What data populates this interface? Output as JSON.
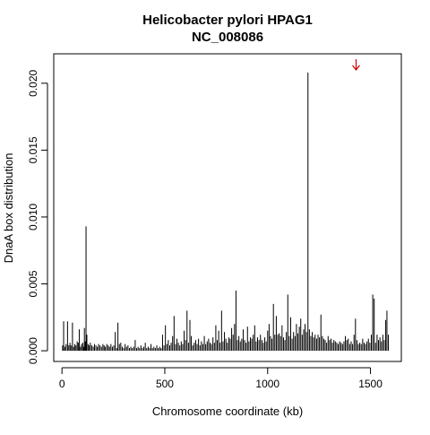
{
  "chart_data": {
    "type": "bar",
    "title": "Helicobacter pylori HPAG1",
    "subtitle": "NC_008086",
    "xlabel": "Chromosome coordinate (kb)",
    "ylabel": "DnaA box distribution",
    "xlim": [
      -40,
      1650
    ],
    "ylim": [
      -0.0008,
      0.0222
    ],
    "xticks": [
      {
        "value": 0,
        "label": "0"
      },
      {
        "value": 500,
        "label": "500"
      },
      {
        "value": 1000,
        "label": "1000"
      },
      {
        "value": 1500,
        "label": "1500"
      }
    ],
    "yticks": [
      {
        "value": 0.0,
        "label": "0.000"
      },
      {
        "value": 0.005,
        "label": "0.005"
      },
      {
        "value": 0.01,
        "label": "0.010"
      },
      {
        "value": 0.015,
        "label": "0.015"
      },
      {
        "value": 0.02,
        "label": "0.020"
      }
    ],
    "grid": false,
    "bar_color": "#000000",
    "x": [
      3,
      8,
      14,
      20,
      27,
      33,
      39,
      44,
      51,
      56,
      62,
      68,
      74,
      79,
      84,
      90,
      95,
      101,
      106,
      109,
      113,
      117,
      121,
      127,
      133,
      138,
      145,
      152,
      158,
      165,
      172,
      178,
      185,
      192,
      199,
      205,
      211,
      218,
      225,
      231,
      238,
      245,
      252,
      259,
      266,
      272,
      279,
      286,
      293,
      300,
      307,
      314,
      321,
      328,
      335,
      342,
      349,
      356,
      363,
      370,
      377,
      384,
      391,
      398,
      405,
      412,
      419,
      426,
      433,
      440,
      447,
      454,
      461,
      468,
      475,
      482,
      489,
      496,
      503,
      510,
      517,
      524,
      531,
      538,
      545,
      552,
      559,
      566,
      573,
      580,
      587,
      594,
      601,
      608,
      615,
      622,
      629,
      636,
      643,
      650,
      657,
      664,
      671,
      678,
      685,
      692,
      699,
      706,
      713,
      720,
      727,
      734,
      741,
      748,
      755,
      762,
      769,
      776,
      783,
      790,
      797,
      804,
      811,
      818,
      825,
      832,
      839,
      846,
      853,
      860,
      867,
      874,
      881,
      888,
      895,
      902,
      909,
      916,
      923,
      930,
      937,
      944,
      951,
      958,
      965,
      972,
      979,
      986,
      993,
      1000,
      1007,
      1014,
      1021,
      1028,
      1035,
      1042,
      1049,
      1056,
      1063,
      1070,
      1077,
      1084,
      1091,
      1098,
      1105,
      1112,
      1119,
      1126,
      1133,
      1140,
      1147,
      1154,
      1161,
      1168,
      1175,
      1182,
      1189,
      1196,
      1203,
      1210,
      1217,
      1224,
      1231,
      1238,
      1245,
      1252,
      1259,
      1266,
      1273,
      1280,
      1287,
      1294,
      1301,
      1308,
      1315,
      1322,
      1329,
      1336,
      1343,
      1350,
      1357,
      1364,
      1371,
      1378,
      1385,
      1392,
      1399,
      1406,
      1413,
      1420,
      1427,
      1434,
      1441,
      1448,
      1455,
      1462,
      1469,
      1476,
      1483,
      1490,
      1497,
      1504,
      1511,
      1518,
      1525,
      1532,
      1539,
      1546,
      1553,
      1560,
      1567,
      1574,
      1580,
      1587
    ],
    "values": [
      0.0004,
      0.0022,
      0.0003,
      0.0005,
      0.0022,
      0.0004,
      0.0006,
      0.0004,
      0.0021,
      0.0003,
      0.0005,
      0.0004,
      0.0007,
      0.0006,
      0.0016,
      0.0003,
      0.0005,
      0.0006,
      0.0003,
      0.0017,
      0.0007,
      0.0093,
      0.0012,
      0.0005,
      0.0004,
      0.0006,
      0.0004,
      0.0003,
      0.0005,
      0.0004,
      0.0003,
      0.0005,
      0.0004,
      0.0003,
      0.0005,
      0.0004,
      0.0003,
      0.0005,
      0.0004,
      0.0003,
      0.0005,
      0.0003,
      0.0004,
      0.0014,
      0.0002,
      0.0021,
      0.0005,
      0.0006,
      0.0003,
      0.0002,
      0.0005,
      0.0003,
      0.0004,
      0.0002,
      0.0003,
      0.0002,
      0.0003,
      0.0008,
      0.0002,
      0.0003,
      0.0002,
      0.0004,
      0.0002,
      0.0003,
      0.0006,
      0.0002,
      0.0003,
      0.0002,
      0.0005,
      0.0002,
      0.0003,
      0.0002,
      0.0004,
      0.0002,
      0.0003,
      0.0002,
      0.0012,
      0.0004,
      0.0019,
      0.0005,
      0.0008,
      0.0004,
      0.0006,
      0.0011,
      0.0026,
      0.0005,
      0.0009,
      0.0006,
      0.0004,
      0.0007,
      0.0005,
      0.0015,
      0.0008,
      0.003,
      0.0006,
      0.0023,
      0.0011,
      0.0004,
      0.0006,
      0.0008,
      0.0005,
      0.0009,
      0.0004,
      0.0007,
      0.0005,
      0.0011,
      0.0005,
      0.0007,
      0.0009,
      0.0006,
      0.0005,
      0.001,
      0.0006,
      0.0019,
      0.0008,
      0.0015,
      0.0006,
      0.003,
      0.0007,
      0.0014,
      0.0009,
      0.0006,
      0.001,
      0.0009,
      0.0017,
      0.0012,
      0.002,
      0.0045,
      0.0008,
      0.0011,
      0.0007,
      0.0009,
      0.0016,
      0.0008,
      0.0006,
      0.0018,
      0.0007,
      0.001,
      0.0009,
      0.0012,
      0.0019,
      0.0007,
      0.001,
      0.0008,
      0.0012,
      0.0008,
      0.0006,
      0.001,
      0.0007,
      0.0015,
      0.002,
      0.0011,
      0.0009,
      0.0035,
      0.0012,
      0.0026,
      0.0012,
      0.0013,
      0.0011,
      0.0019,
      0.001,
      0.0008,
      0.0014,
      0.0042,
      0.0011,
      0.0025,
      0.0009,
      0.0014,
      0.0011,
      0.002,
      0.0013,
      0.0018,
      0.0024,
      0.0012,
      0.0016,
      0.002,
      0.0014,
      0.0208,
      0.0016,
      0.0011,
      0.0014,
      0.001,
      0.0012,
      0.0009,
      0.0012,
      0.001,
      0.0027,
      0.0011,
      0.0009,
      0.0008,
      0.0006,
      0.0011,
      0.0008,
      0.0009,
      0.0006,
      0.0008,
      0.0007,
      0.0006,
      0.0005,
      0.0007,
      0.0006,
      0.0005,
      0.0007,
      0.0011,
      0.0008,
      0.0009,
      0.0005,
      0.0007,
      0.0005,
      0.0012,
      0.0024,
      0.0008,
      0.0005,
      0.0006,
      0.0005,
      0.0009,
      0.0006,
      0.0005,
      0.0007,
      0.0009,
      0.0006,
      0.0012,
      0.0042,
      0.0039,
      0.0006,
      0.0012,
      0.0008,
      0.001,
      0.0007,
      0.0012,
      0.0008,
      0.0023,
      0.003,
      0.0012
    ],
    "annotations": [
      {
        "type": "arrow",
        "symbol": "down-arrow",
        "x": 1430,
        "y": 0.0214,
        "color": "#cc0000"
      }
    ]
  }
}
